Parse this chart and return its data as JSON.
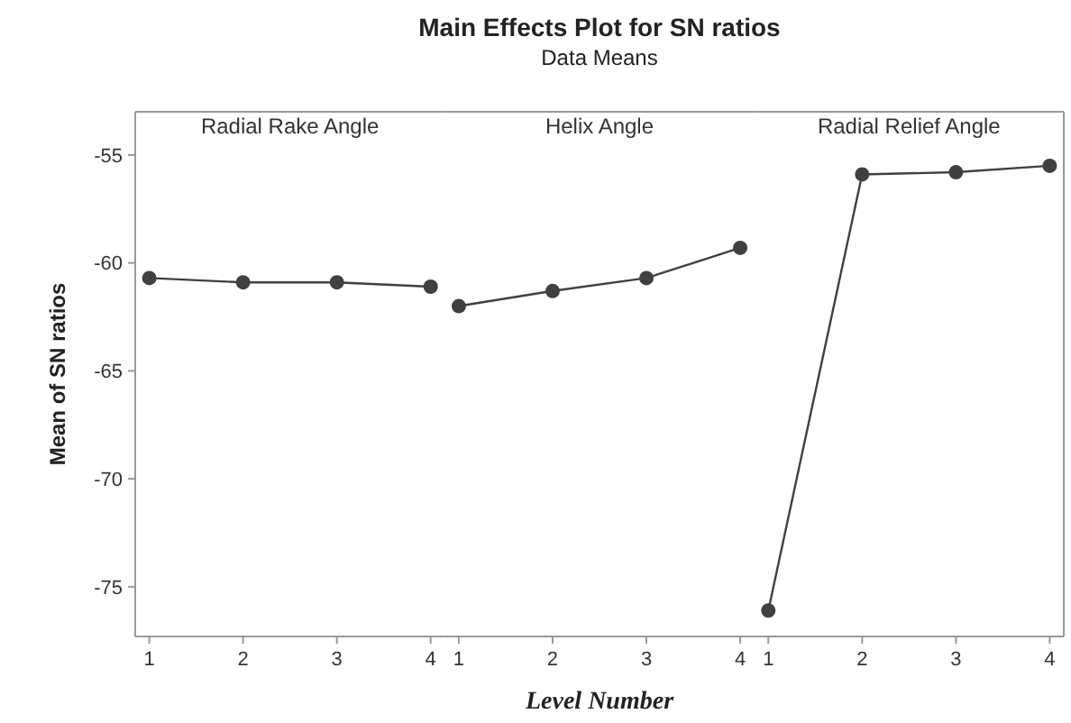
{
  "chart_data": [
    {
      "type": "line",
      "ylabel": "Mean of SN ratios",
      "categories": [
        "1",
        "2",
        "3",
        "4"
      ],
      "ylim": [
        -77.3,
        -53
      ],
      "yticks": [
        -75,
        -70,
        -65,
        -60,
        -55
      ],
      "marker": "circle",
      "grid": false,
      "series": [
        {
          "name": "Radial Rake Angle",
          "color": "#404040",
          "values": [
            -60.7,
            -60.9,
            -60.9,
            -61.1
          ]
        }
      ]
    },
    {
      "type": "line",
      "title": "Main Effects Plot for SN ratios",
      "subtitle": "Data Means",
      "xlabel": "Level Number",
      "categories": [
        "1",
        "2",
        "3",
        "4"
      ],
      "ylim": [
        -77.3,
        -53
      ],
      "yticks": [
        -75,
        -70,
        -65,
        -60,
        -55
      ],
      "tick_labels": "x",
      "marker": "circle",
      "grid": false,
      "series": [
        {
          "name": "Helix Angle",
          "color": "#404040",
          "values": [
            -62.0,
            -61.3,
            -60.7,
            -59.3
          ]
        }
      ]
    },
    {
      "type": "line",
      "categories": [
        "1",
        "2",
        "3",
        "4"
      ],
      "ylim": [
        -77.3,
        -53
      ],
      "yticks": [
        -75,
        -70,
        -65,
        -60,
        -55
      ],
      "tick_labels": "x",
      "marker": "circle",
      "grid": false,
      "series": [
        {
          "name": "Radial Relief Angle",
          "color": "#404040",
          "values": [
            -76.1,
            -55.9,
            -55.8,
            -55.5
          ]
        }
      ]
    }
  ]
}
